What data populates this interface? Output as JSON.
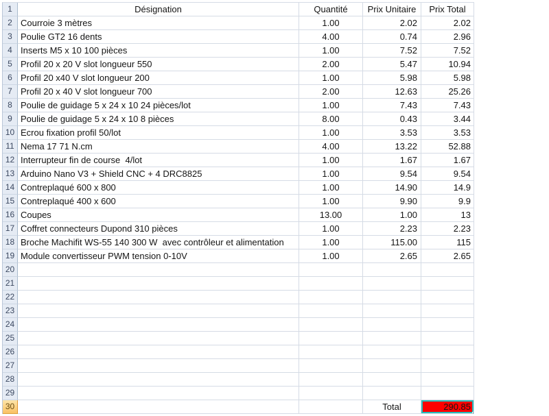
{
  "sheet": {
    "columns": [
      {
        "key": "designation",
        "label": "Désignation",
        "align": "left"
      },
      {
        "key": "quantite",
        "label": "Quantité",
        "align": "center"
      },
      {
        "key": "prix_unitaire",
        "label": "Prix Unitaire",
        "align": "right"
      },
      {
        "key": "prix_total",
        "label": "Prix Total",
        "align": "right"
      }
    ],
    "rows": [
      {
        "num": "1",
        "type": "columns"
      },
      {
        "num": "2",
        "designation": "Courroie 3 mètres",
        "quantite": "1.00",
        "prix_unitaire": "2.02",
        "prix_total": "2.02"
      },
      {
        "num": "3",
        "designation": "Poulie GT2 16 dents",
        "quantite": "4.00",
        "prix_unitaire": "0.74",
        "prix_total": "2.96"
      },
      {
        "num": "4",
        "designation": "Inserts M5 x 10 100 pièces",
        "quantite": "1.00",
        "prix_unitaire": "7.52",
        "prix_total": "7.52"
      },
      {
        "num": "5",
        "designation": "Profil 20 x 20 V slot longueur 550",
        "quantite": "2.00",
        "prix_unitaire": "5.47",
        "prix_total": "10.94"
      },
      {
        "num": "6",
        "designation": "Profil 20 x40 V slot longueur 200",
        "quantite": "1.00",
        "prix_unitaire": "5.98",
        "prix_total": "5.98"
      },
      {
        "num": "7",
        "designation": "Profil 20 x 40 V slot longueur 700",
        "quantite": "2.00",
        "prix_unitaire": "12.63",
        "prix_total": "25.26"
      },
      {
        "num": "8",
        "designation": "Poulie de guidage 5 x 24 x 10 24 pièces/lot",
        "quantite": "1.00",
        "prix_unitaire": "7.43",
        "prix_total": "7.43"
      },
      {
        "num": "9",
        "designation": "Poulie de guidage 5 x 24 x 10 8 pièces",
        "quantite": "8.00",
        "prix_unitaire": "0.43",
        "prix_total": "3.44"
      },
      {
        "num": "10",
        "designation": "Ecrou fixation profil 50/lot",
        "quantite": "1.00",
        "prix_unitaire": "3.53",
        "prix_total": "3.53"
      },
      {
        "num": "11",
        "designation": "Nema 17 71 N.cm",
        "quantite": "4.00",
        "prix_unitaire": "13.22",
        "prix_total": "52.88"
      },
      {
        "num": "12",
        "designation": "Interrupteur fin de course  4/lot",
        "quantite": "1.00",
        "prix_unitaire": "1.67",
        "prix_total": "1.67"
      },
      {
        "num": "13",
        "designation": "Arduino Nano V3 + Shield CNC + 4 DRC8825",
        "quantite": "1.00",
        "prix_unitaire": "9.54",
        "prix_total": "9.54"
      },
      {
        "num": "14",
        "designation": "Contreplaqué 600 x 800",
        "quantite": "1.00",
        "prix_unitaire": "14.90",
        "prix_total": "14.9"
      },
      {
        "num": "15",
        "designation": "Contreplaqué 400 x 600",
        "quantite": "1.00",
        "prix_unitaire": "9.90",
        "prix_total": "9.9"
      },
      {
        "num": "16",
        "designation": "Coupes",
        "quantite": "13.00",
        "prix_unitaire": "1.00",
        "prix_total": "13"
      },
      {
        "num": "17",
        "designation": "Coffret connecteurs Dupond 310 pièces",
        "quantite": "1.00",
        "prix_unitaire": "2.23",
        "prix_total": "2.23"
      },
      {
        "num": "18",
        "designation": "Broche Machifit WS-55 140 300 W  avec contrôleur et alimentation",
        "quantite": "1.00",
        "prix_unitaire": "115.00",
        "prix_total": "115"
      },
      {
        "num": "19",
        "designation": "Module convertisseur PWM tension 0-10V",
        "quantite": "1.00",
        "prix_unitaire": "2.65",
        "prix_total": "2.65"
      },
      {
        "num": "20"
      },
      {
        "num": "21"
      },
      {
        "num": "22"
      },
      {
        "num": "23"
      },
      {
        "num": "24"
      },
      {
        "num": "25"
      },
      {
        "num": "26"
      },
      {
        "num": "27"
      },
      {
        "num": "28"
      },
      {
        "num": "29"
      },
      {
        "num": "30",
        "type": "total",
        "label": "Total",
        "value": "290.85",
        "selected": true
      }
    ],
    "colors": {
      "total_cell_fill": "#ff0000",
      "selection_border": "#2abcba",
      "selection_border_outer": "#0c6b69",
      "selected_row_header": "#f9c264",
      "row_header_bg": "#e5ebf4",
      "gridline": "#d5dbe5"
    }
  }
}
